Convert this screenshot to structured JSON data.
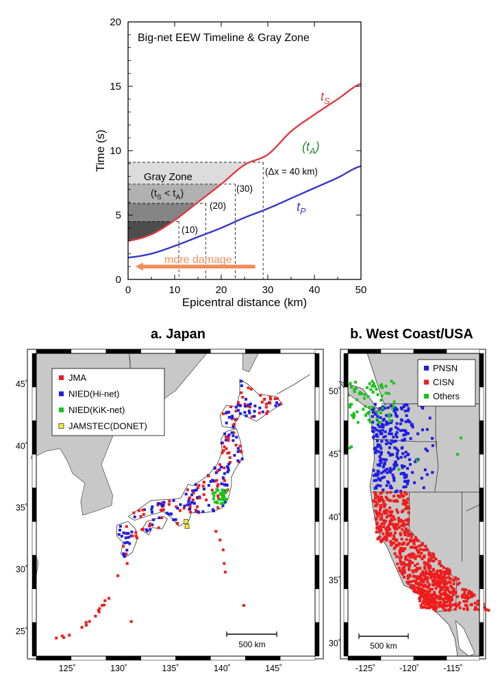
{
  "chart_data": [
    {
      "type": "line",
      "title": "Big-net EEW Timeline & Gray Zone",
      "xlabel": "Epicentral distance (km)",
      "ylabel": "Time (s)",
      "xlim": [
        0,
        50
      ],
      "ylim": [
        0,
        20
      ],
      "xticks": [
        0,
        10,
        20,
        30,
        40,
        50
      ],
      "yticks": [
        0,
        5,
        10,
        15,
        20
      ],
      "grid": false,
      "series": [
        {
          "name": "tS",
          "label_main": "t",
          "label_sub": "S",
          "color": "#e0393e",
          "x": [
            0,
            5,
            10,
            15,
            20,
            25,
            30,
            35,
            40,
            45,
            50
          ],
          "values": [
            3.0,
            3.5,
            4.6,
            6.0,
            7.4,
            8.9,
            9.7,
            11.5,
            12.8,
            14.0,
            15.2
          ]
        },
        {
          "name": "tP",
          "label_main": "t",
          "label_sub": "P",
          "color": "#3636c8",
          "x": [
            0,
            5,
            10,
            15,
            20,
            25,
            30,
            35,
            40,
            45,
            50
          ],
          "values": [
            1.7,
            2.0,
            2.6,
            3.3,
            4.0,
            4.8,
            5.5,
            6.3,
            7.1,
            7.9,
            8.8
          ]
        }
      ],
      "tA_label": {
        "main": "(t",
        "sub": "A",
        "close": ")",
        "color": "#2a8a3a"
      },
      "gray_zone": {
        "label": "Gray Zone",
        "condition_main": "(t",
        "condition_s": "S",
        "condition_mid": " < t",
        "condition_a": "A",
        "condition_close": ")",
        "levels_s": [
          4.5,
          5.9,
          7.4,
          9.1
        ],
        "station_distances_km": [
          10.9,
          16.7,
          23.0,
          29.0
        ]
      },
      "delta_x_labels": [
        "(10)",
        "(20)",
        "(30)",
        "(Δx = 40 km)"
      ],
      "arrow_label": "more damage",
      "arrow_color": "#f28c5a"
    },
    {
      "type": "scatter",
      "title": "a. Japan",
      "x_ticks": [
        "125˚",
        "130˚",
        "135˚",
        "140˚",
        "145˚"
      ],
      "y_ticks": [
        "25˚",
        "30˚",
        "35˚",
        "40˚",
        "45˚"
      ],
      "lon_range": [
        122,
        149
      ],
      "lat_range": [
        23,
        47.5
      ],
      "scale_label": "500 km",
      "legend": [
        {
          "label": "JMA",
          "color": "#ee1c1c"
        },
        {
          "label": "NIED(Hi-net)",
          "color": "#1d1de6"
        },
        {
          "label": "NIED(KiK-net)",
          "color": "#19c419"
        },
        {
          "label": "JAMSTEC(DONET)",
          "color": "#f2ee2a"
        }
      ]
    },
    {
      "type": "scatter",
      "title": "b. West Coast/USA",
      "x_ticks": [
        "-125˚",
        "-120˚",
        "-115˚"
      ],
      "y_ticks": [
        "30˚",
        "35˚",
        "40˚",
        "45˚",
        "50˚"
      ],
      "lon_range": [
        -127,
        -112
      ],
      "lat_range": [
        29,
        53
      ],
      "scale_label": "500 km",
      "legend": [
        {
          "label": "PNSN",
          "color": "#1d1de6"
        },
        {
          "label": "CISN",
          "color": "#ee1c1c"
        },
        {
          "label": "Others",
          "color": "#19c419"
        }
      ]
    }
  ]
}
